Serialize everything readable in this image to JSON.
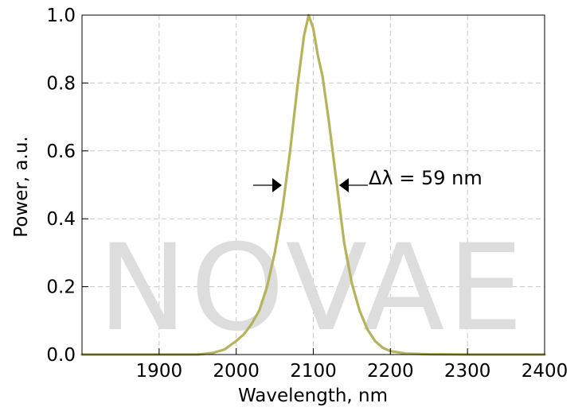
{
  "chart_data": {
    "type": "line",
    "title": "",
    "xlabel": "Wavelength, nm",
    "ylabel": "Power, a.u.",
    "xlim": [
      1800,
      2400
    ],
    "ylim": [
      0.0,
      1.0
    ],
    "xticks": [
      1900,
      2000,
      2100,
      2200,
      2300,
      2400
    ],
    "xtick_labels": [
      "1900",
      "2000",
      "2100",
      "2200",
      "2300",
      "2400"
    ],
    "yticks": [
      0.0,
      0.2,
      0.4,
      0.6,
      0.8,
      1.0
    ],
    "ytick_labels": [
      "0.0",
      "0.2",
      "0.4",
      "0.6",
      "0.8",
      "1.0"
    ],
    "grid": true,
    "legend": "none",
    "series": [
      {
        "color": "#b5b35c",
        "x": [
          1800,
          1900,
          1950,
          1970,
          1985,
          2000,
          2010,
          2020,
          2030,
          2040,
          2050,
          2060,
          2070,
          2080,
          2088,
          2094,
          2100,
          2106,
          2112,
          2120,
          2130,
          2140,
          2150,
          2160,
          2170,
          2180,
          2190,
          2200,
          2220,
          2250,
          2300,
          2400
        ],
        "y": [
          0.0,
          0.0,
          0.0,
          0.005,
          0.015,
          0.04,
          0.06,
          0.09,
          0.13,
          0.2,
          0.3,
          0.43,
          0.6,
          0.8,
          0.94,
          1.0,
          0.96,
          0.88,
          0.82,
          0.69,
          0.51,
          0.33,
          0.21,
          0.13,
          0.075,
          0.04,
          0.02,
          0.01,
          0.003,
          0.001,
          0.0,
          0.0
        ]
      }
    ],
    "annotations": [
      {
        "text": "Δλ = 59 nm"
      }
    ]
  },
  "watermark": "NOVAE"
}
